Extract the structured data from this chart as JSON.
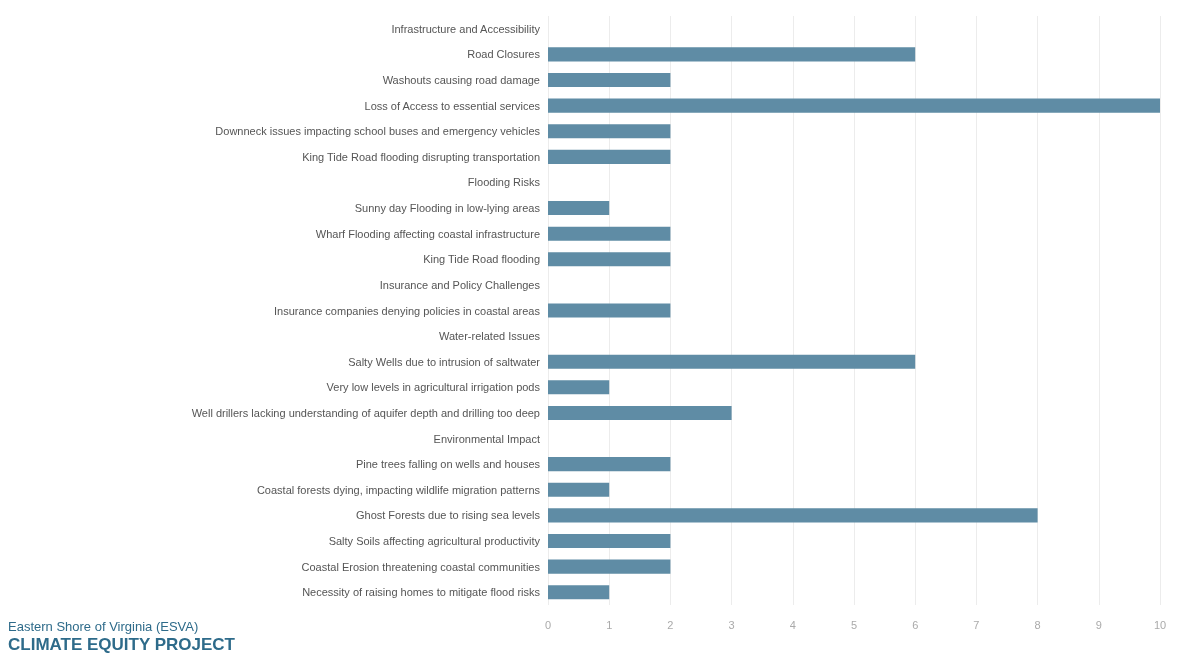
{
  "chart_data": {
    "type": "bar",
    "orientation": "horizontal",
    "categories": [
      "Infrastructure and Accessibility",
      "Road Closures",
      "Washouts causing road damage",
      "Loss of Access to essential services",
      "Downneck issues impacting school buses and emergency vehicles",
      "King Tide Road flooding disrupting transportation",
      "Flooding Risks",
      "Sunny day Flooding in low-lying areas",
      "Wharf Flooding affecting coastal infrastructure",
      "King Tide Road flooding",
      "Insurance and Policy Challenges",
      "Insurance companies denying policies in coastal areas",
      "Water-related Issues",
      "Salty Wells due to intrusion of saltwater",
      "Very low levels in agricultural irrigation pods",
      "Well drillers lacking understanding of aquifer depth and drilling too deep",
      "Environmental Impact",
      "Pine trees falling on wells and houses",
      "Coastal forests dying, impacting wildlife migration patterns",
      "Ghost Forests due to rising sea levels",
      "Salty Soils affecting agricultural productivity",
      "Coastal Erosion threatening coastal communities",
      "Necessity of raising homes to mitigate flood risks"
    ],
    "values": [
      null,
      6,
      2,
      10,
      2,
      2,
      null,
      1,
      2,
      2,
      null,
      2,
      null,
      6,
      1,
      3,
      null,
      2,
      1,
      8,
      2,
      2,
      1
    ],
    "color": "#5f8ca5",
    "xlim": [
      0,
      10
    ],
    "xticks": [
      0,
      1,
      2,
      3,
      4,
      5,
      6,
      7,
      8,
      9,
      10
    ],
    "grid": "x",
    "annotations": [
      "Eastern Shore of Virginia (ESVA)",
      "CLIMATE EQUITY PROJECT"
    ]
  }
}
